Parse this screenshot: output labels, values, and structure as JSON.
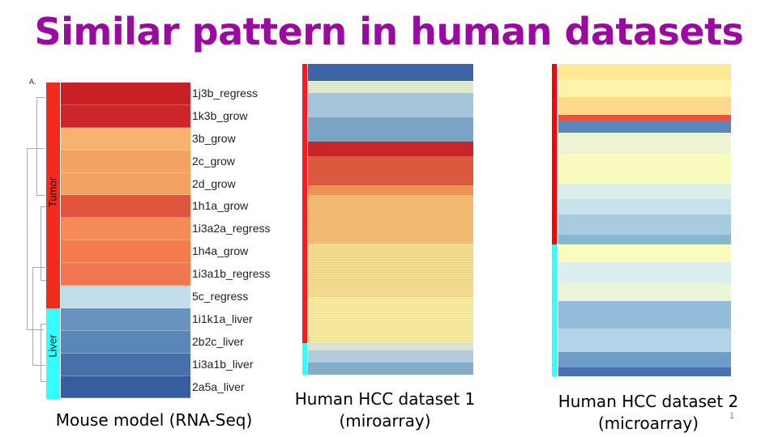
{
  "title": "Similar pattern in human datasets",
  "panel_label": "A.",
  "captions": {
    "mouse": [
      "Mouse model (RNA-Seq)"
    ],
    "hcc1": [
      "Human HCC dataset 1",
      "(miroarray)"
    ],
    "hcc2": [
      "Human HCC dataset 2",
      "(microarray)"
    ]
  },
  "page_number": "1",
  "colors": {
    "tumor": "#f52a1e",
    "liver": "#33ffff",
    "title": "#9b0aa0"
  },
  "chart_data": [
    {
      "type": "heatmap",
      "title": "Mouse model (RNA-Seq)",
      "groups": [
        {
          "name": "Tumor",
          "rows": 10,
          "color": "#f52a1e"
        },
        {
          "name": "Liver",
          "rows": 4,
          "color": "#33ffff"
        }
      ],
      "rows": [
        {
          "label": "1j3b_regress",
          "color": "#c92025"
        },
        {
          "label": "1k3b_grow",
          "color": "#cd2629"
        },
        {
          "label": "3b_grow",
          "color": "#f6b26f"
        },
        {
          "label": "2c_grow",
          "color": "#f4a263"
        },
        {
          "label": "2d_grow",
          "color": "#f4a263"
        },
        {
          "label": "1h1a_grow",
          "color": "#e1553d"
        },
        {
          "label": "1i3a2a_regress",
          "color": "#f48a58"
        },
        {
          "label": "1h4a_grow",
          "color": "#f47b4e"
        },
        {
          "label": "1i3a1b_regress",
          "color": "#f27650"
        },
        {
          "label": "5c_regress",
          "color": "#c2dfe9"
        },
        {
          "label": "1i1k1a_liver",
          "color": "#6892bf"
        },
        {
          "label": "2b2c_liver",
          "color": "#5b86b8"
        },
        {
          "label": "1i3a1b_liver",
          "color": "#4770aa"
        },
        {
          "label": "2a5a_liver",
          "color": "#365e9f"
        }
      ]
    },
    {
      "type": "heatmap",
      "title": "Human HCC dataset 1 (miroarray)",
      "groups": [
        {
          "name": "Tumor",
          "rows": 115,
          "color": "#ff1a1a"
        },
        {
          "name": "Liver",
          "rows": 13,
          "color": "#33ffff"
        }
      ],
      "bands": [
        {
          "color": "#3f66a8",
          "rows": 7
        },
        {
          "color": "#e3ebcf",
          "rows": 5
        },
        {
          "color": "#a9c8dc",
          "rows": 10
        },
        {
          "color": "#7fa6c8",
          "rows": 10
        },
        {
          "color": "#c9272a",
          "rows": 6
        },
        {
          "color": "#de5b3e",
          "rows": 12
        },
        {
          "color": "#f09458",
          "rows": 4
        },
        {
          "color": "#f5bd74",
          "rows": 20
        },
        {
          "color": "#f6dc8e",
          "rows": 22
        },
        {
          "color": "#f8eb9e",
          "rows": 19
        },
        {
          "color": "#dce6d6",
          "rows": 3
        },
        {
          "color": "#b5cfe0",
          "rows": 5
        },
        {
          "color": "#86aecd",
          "rows": 5
        }
      ]
    },
    {
      "type": "heatmap",
      "title": "Human HCC dataset 2 (microarray)",
      "groups": [
        {
          "name": "Tumor",
          "rows": 60,
          "color": "#ff0000"
        },
        {
          "name": "Liver",
          "rows": 44,
          "color": "#33ffff"
        }
      ],
      "bands": [
        {
          "color": "#fde996",
          "rows": 5
        },
        {
          "color": "#fef3a8",
          "rows": 6
        },
        {
          "color": "#fdd98a",
          "rows": 6
        },
        {
          "color": "#e8553c",
          "rows": 2
        },
        {
          "color": "#5b87bd",
          "rows": 4
        },
        {
          "color": "#eef4d3",
          "rows": 7
        },
        {
          "color": "#f8fbbd",
          "rows": 10
        },
        {
          "color": "#dbeeea",
          "rows": 5
        },
        {
          "color": "#c8e2ec",
          "rows": 5
        },
        {
          "color": "#a9cbe0",
          "rows": 7
        },
        {
          "color": "#8ab6d6",
          "rows": 3
        },
        {
          "color": "#fafbbf",
          "rows": 6
        },
        {
          "color": "#dcefef",
          "rows": 7
        },
        {
          "color": "#eaf4d8",
          "rows": 6
        },
        {
          "color": "#93bcda",
          "rows": 9
        },
        {
          "color": "#b3d3e6",
          "rows": 8
        },
        {
          "color": "#6f9dcb",
          "rows": 5
        },
        {
          "color": "#4a72b0",
          "rows": 3
        }
      ]
    }
  ]
}
